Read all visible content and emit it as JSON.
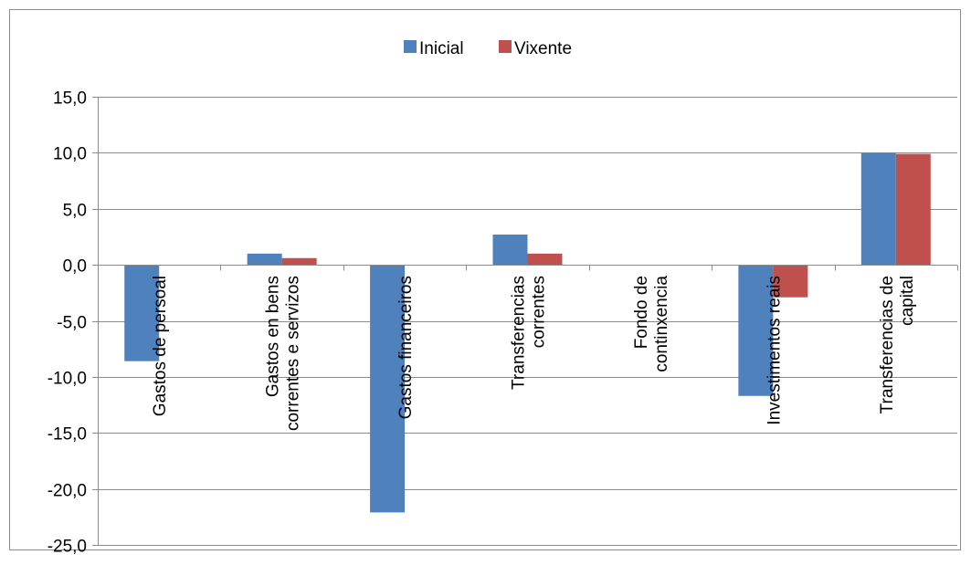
{
  "chart_data": {
    "type": "bar",
    "title": "",
    "xlabel": "",
    "ylabel": "",
    "ylim": [
      -25,
      15
    ],
    "y_ticks": [
      "15,0",
      "10,0",
      "5,0",
      "0,0",
      "-5,0",
      "-10,0",
      "-15,0",
      "-20,0",
      "-25,0"
    ],
    "y_tick_values": [
      15,
      10,
      5,
      0,
      -5,
      -10,
      -15,
      -20,
      -25
    ],
    "grid": "horizontal",
    "legend_position": "top",
    "categories": [
      [
        "Gastos de persoal"
      ],
      [
        "Gastos en bens",
        "correntes e servizos"
      ],
      [
        "Gastos financeiros"
      ],
      [
        "Transferencias",
        "correntes"
      ],
      [
        "Fondo de",
        "continxencia"
      ],
      [
        "Investimentos reais"
      ],
      [
        "Transferencias de",
        "capital"
      ]
    ],
    "series": [
      {
        "name": "Inicial",
        "color": "#4F81BD",
        "values": [
          -8.6,
          1.0,
          -22.1,
          2.7,
          0.0,
          -11.7,
          10.0
        ]
      },
      {
        "name": "Vixente",
        "color": "#C0504D",
        "values": [
          0.0,
          0.6,
          0.0,
          1.0,
          0.0,
          -2.9,
          9.9
        ]
      }
    ]
  }
}
